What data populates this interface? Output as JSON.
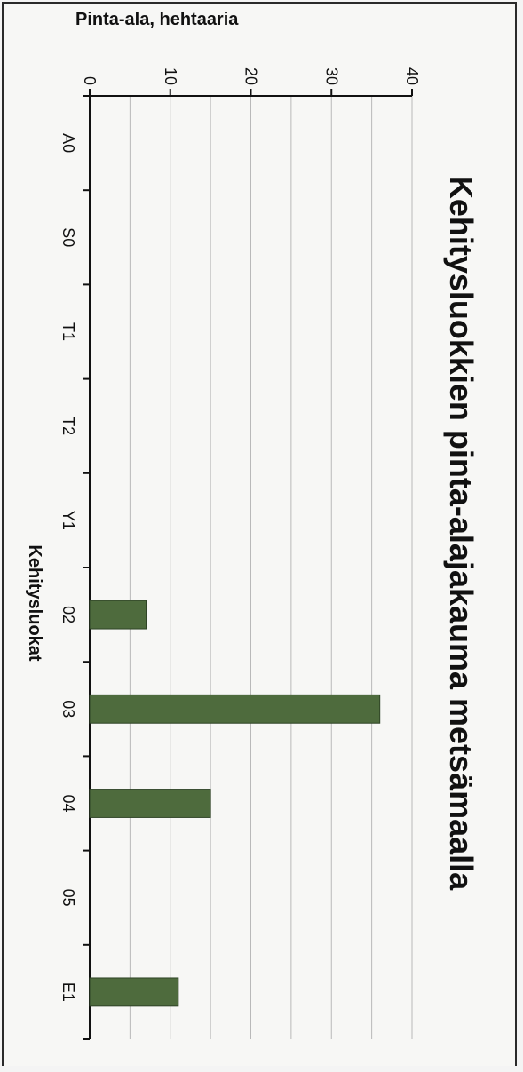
{
  "chart_data": {
    "type": "bar",
    "title": "Kehitysluokkien pinta-alajakauma metsämaalla",
    "xlabel": "Kehitysluokat",
    "ylabel": "Pinta-ala, hehtaaria",
    "categories": [
      "A0",
      "S0",
      "T1",
      "T2",
      "Y1",
      "02",
      "03",
      "04",
      "05",
      "E1"
    ],
    "values": [
      0,
      0,
      0,
      0,
      0,
      7,
      36,
      15,
      0,
      11
    ],
    "ylim": [
      0,
      40
    ],
    "yticks": [
      "0",
      "10",
      "20",
      "30",
      "40"
    ],
    "grid": true,
    "legend": "none",
    "bar_color": "#4e6b3d"
  }
}
